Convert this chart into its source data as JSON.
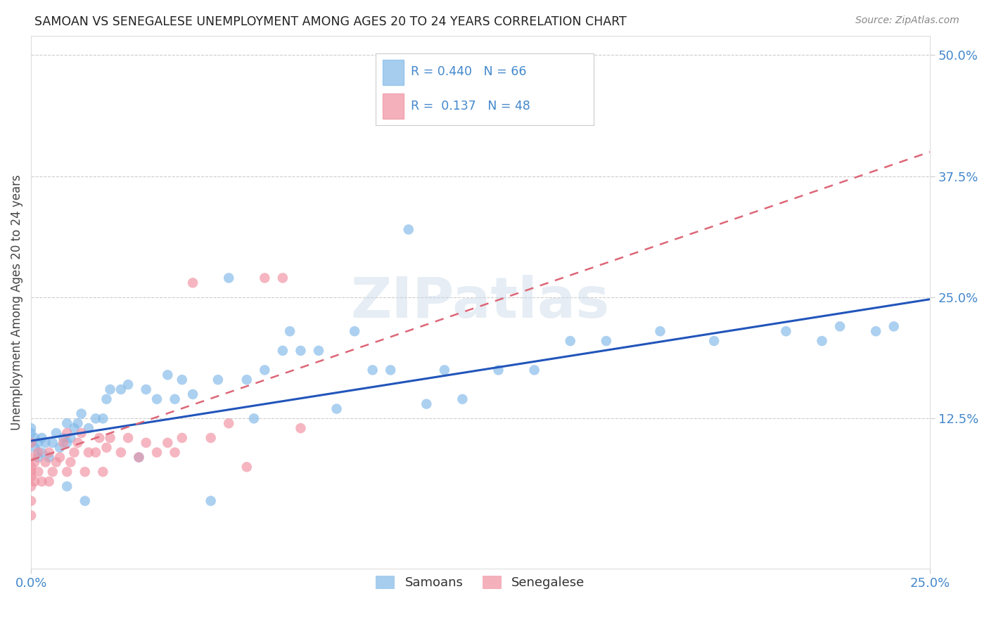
{
  "title": "SAMOAN VS SENEGALESE UNEMPLOYMENT AMONG AGES 20 TO 24 YEARS CORRELATION CHART",
  "source": "Source: ZipAtlas.com",
  "ylabel_label": "Unemployment Among Ages 20 to 24 years",
  "xlim": [
    0.0,
    0.25
  ],
  "ylim": [
    -0.03,
    0.52
  ],
  "yticks": [
    0.125,
    0.25,
    0.375,
    0.5
  ],
  "ytick_labels": [
    "12.5%",
    "25.0%",
    "37.5%",
    "50.0%"
  ],
  "xticks": [
    0.0,
    0.25
  ],
  "xtick_labels": [
    "0.0%",
    "25.0%"
  ],
  "samoan_color": "#80b8e8",
  "senegalese_color": "#f090a0",
  "samoan_line_color": "#2255bb",
  "senegalese_line_color": "#dd6677",
  "watermark": "ZIPatlas",
  "background_color": "#ffffff",
  "tick_color": "#4488cc",
  "samoan_R": 0.44,
  "samoan_N": 66,
  "senegalese_R": 0.137,
  "senegalese_N": 48,
  "samoans_x": [
    0.0,
    0.0,
    0.0,
    0.001,
    0.001,
    0.002,
    0.002,
    0.003,
    0.003,
    0.004,
    0.005,
    0.006,
    0.007,
    0.008,
    0.009,
    0.01,
    0.01,
    0.01,
    0.011,
    0.012,
    0.013,
    0.014,
    0.015,
    0.016,
    0.018,
    0.02,
    0.021,
    0.022,
    0.025,
    0.027,
    0.03,
    0.032,
    0.035,
    0.038,
    0.04,
    0.042,
    0.045,
    0.05,
    0.052,
    0.055,
    0.06,
    0.062,
    0.065,
    0.07,
    0.072,
    0.075,
    0.08,
    0.085,
    0.09,
    0.095,
    0.1,
    0.105,
    0.11,
    0.115,
    0.12,
    0.13,
    0.14,
    0.15,
    0.16,
    0.175,
    0.19,
    0.21,
    0.22,
    0.225,
    0.235,
    0.24
  ],
  "samoans_y": [
    0.1,
    0.11,
    0.115,
    0.095,
    0.105,
    0.085,
    0.1,
    0.09,
    0.105,
    0.1,
    0.085,
    0.1,
    0.11,
    0.095,
    0.105,
    0.055,
    0.1,
    0.12,
    0.105,
    0.115,
    0.12,
    0.13,
    0.04,
    0.115,
    0.125,
    0.125,
    0.145,
    0.155,
    0.155,
    0.16,
    0.085,
    0.155,
    0.145,
    0.17,
    0.145,
    0.165,
    0.15,
    0.04,
    0.165,
    0.27,
    0.165,
    0.125,
    0.175,
    0.195,
    0.215,
    0.195,
    0.195,
    0.135,
    0.215,
    0.175,
    0.175,
    0.32,
    0.14,
    0.175,
    0.145,
    0.175,
    0.175,
    0.205,
    0.205,
    0.215,
    0.205,
    0.215,
    0.205,
    0.22,
    0.215,
    0.22
  ],
  "senegalese_x": [
    0.0,
    0.0,
    0.0,
    0.0,
    0.0,
    0.0,
    0.0,
    0.0,
    0.001,
    0.001,
    0.002,
    0.002,
    0.003,
    0.004,
    0.005,
    0.005,
    0.006,
    0.007,
    0.008,
    0.009,
    0.01,
    0.01,
    0.011,
    0.012,
    0.013,
    0.014,
    0.015,
    0.016,
    0.018,
    0.019,
    0.02,
    0.021,
    0.022,
    0.025,
    0.027,
    0.03,
    0.032,
    0.035,
    0.038,
    0.04,
    0.042,
    0.045,
    0.05,
    0.055,
    0.06,
    0.065,
    0.07,
    0.075
  ],
  "senegalese_y": [
    0.025,
    0.04,
    0.055,
    0.065,
    0.07,
    0.075,
    0.085,
    0.1,
    0.06,
    0.08,
    0.07,
    0.09,
    0.06,
    0.08,
    0.06,
    0.09,
    0.07,
    0.08,
    0.085,
    0.1,
    0.07,
    0.11,
    0.08,
    0.09,
    0.1,
    0.11,
    0.07,
    0.09,
    0.09,
    0.105,
    0.07,
    0.095,
    0.105,
    0.09,
    0.105,
    0.085,
    0.1,
    0.09,
    0.1,
    0.09,
    0.105,
    0.265,
    0.105,
    0.12,
    0.075,
    0.27,
    0.27,
    0.115
  ],
  "samoan_line_x": [
    0.0,
    0.25
  ],
  "samoan_line_y": [
    0.102,
    0.248
  ],
  "senegalese_line_x": [
    0.0,
    0.25
  ],
  "senegalese_line_y": [
    0.082,
    0.4
  ]
}
